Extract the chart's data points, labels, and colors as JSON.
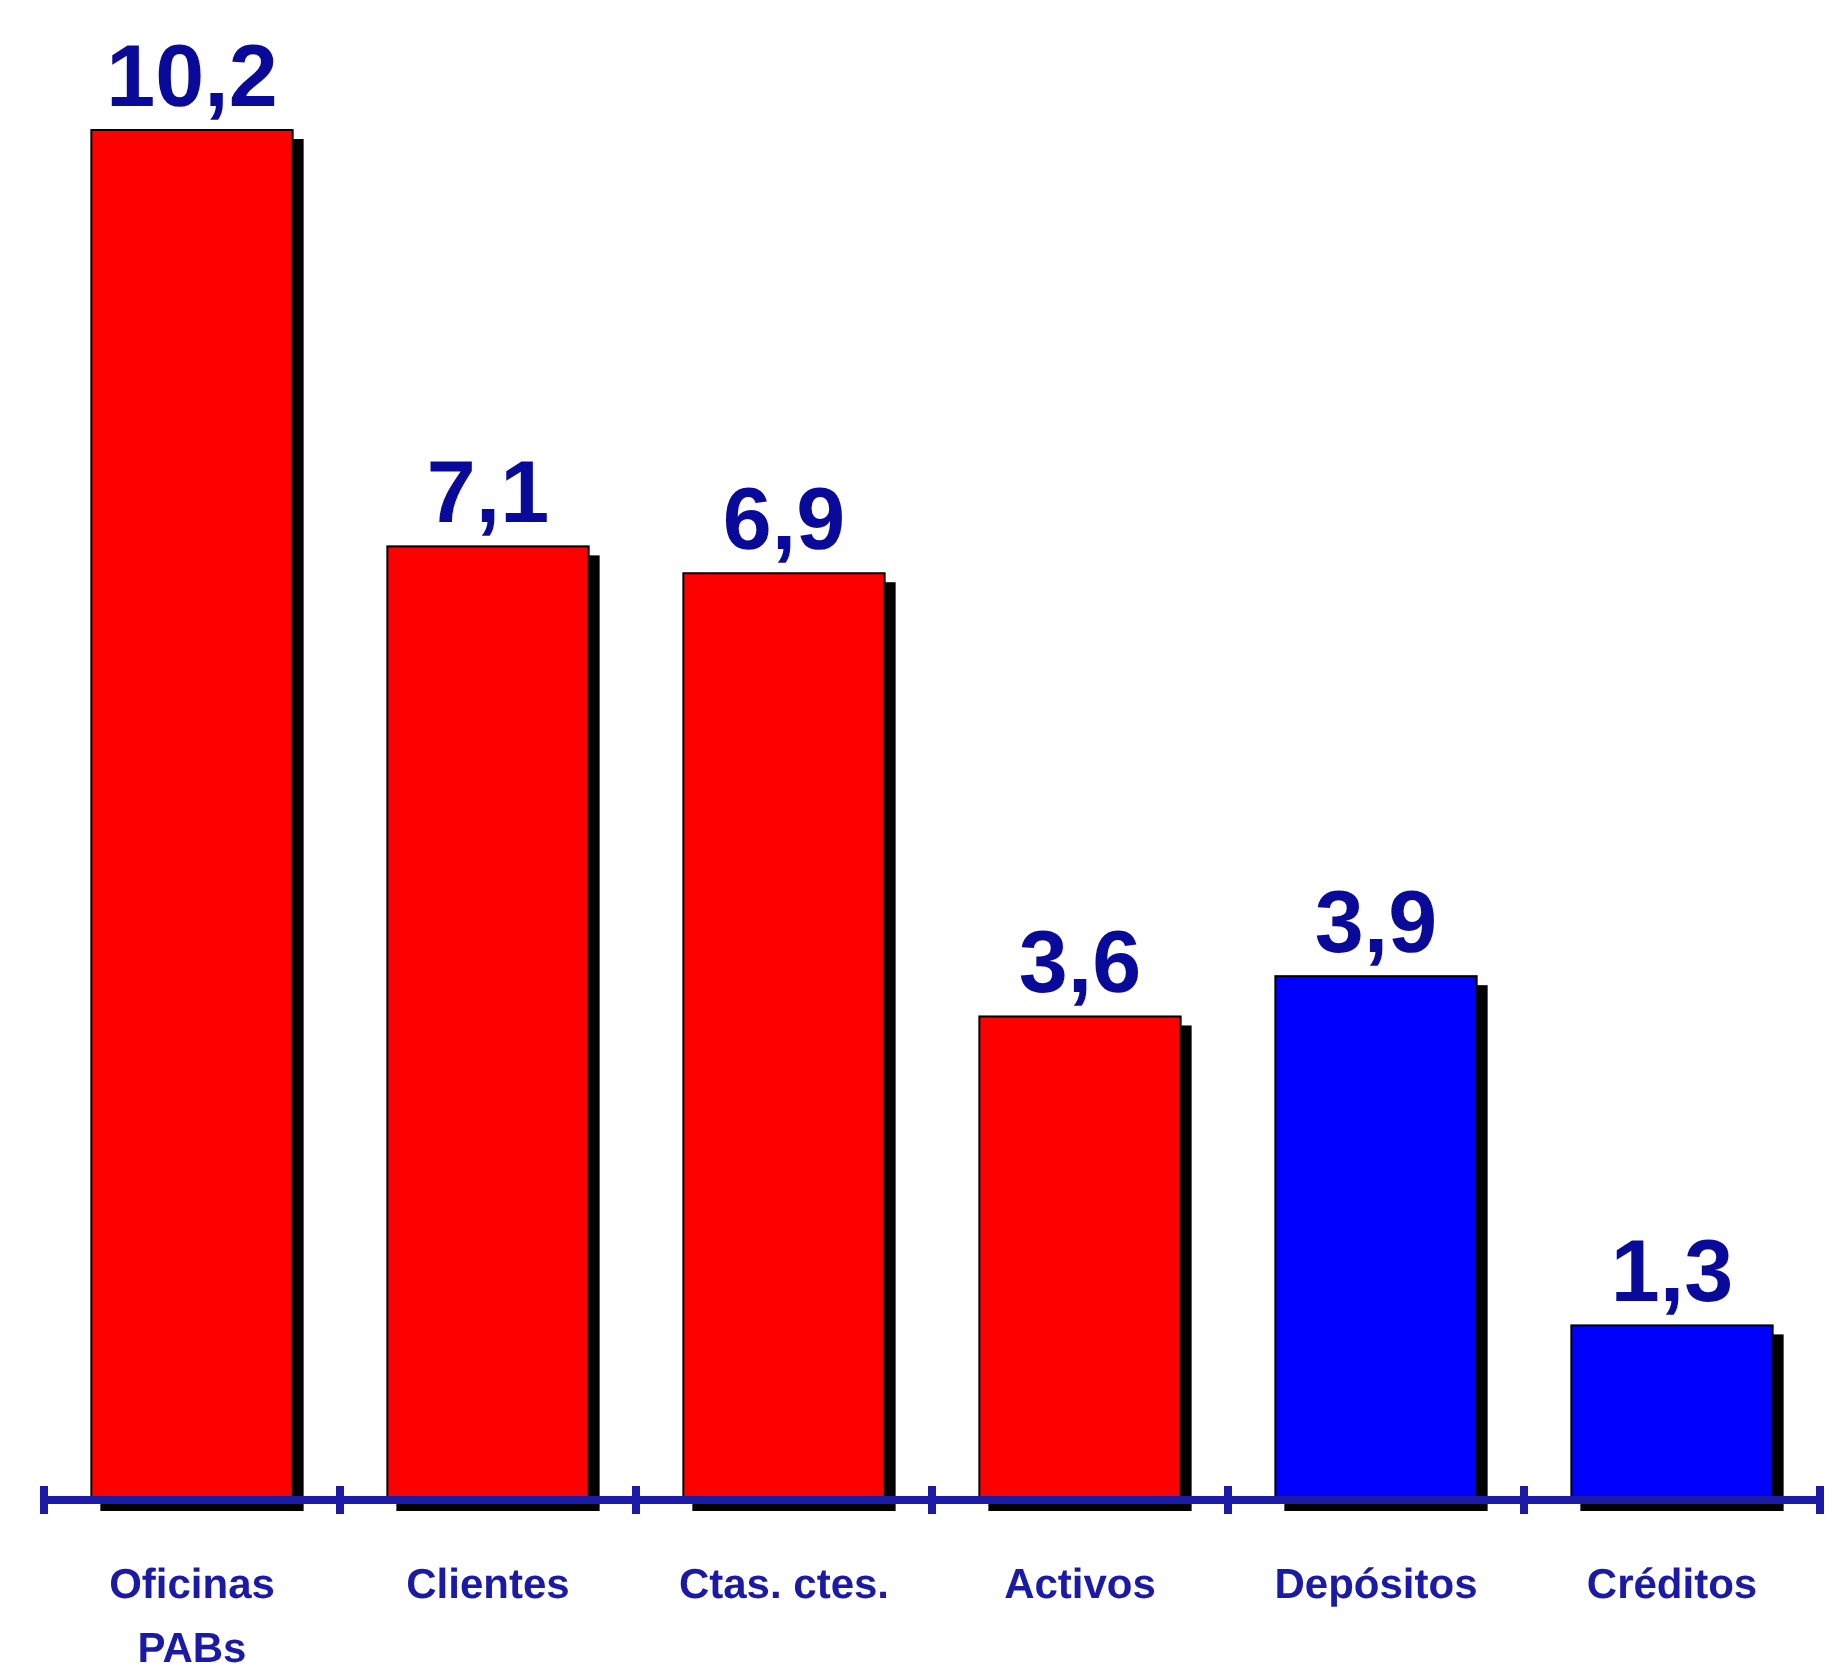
{
  "chart_data": {
    "type": "bar",
    "categories": [
      "Oficinas PABs",
      "Clientes",
      "Ctas. ctes.",
      "Activos",
      "Depósitos",
      "Créditos"
    ],
    "values": [
      10.2,
      7.1,
      6.9,
      3.6,
      3.9,
      1.3
    ],
    "colors": [
      "#ff0000",
      "#ff0000",
      "#ff0000",
      "#ff0000",
      "#0000ff",
      "#0000ff"
    ],
    "value_labels": [
      "10,2",
      "7,1",
      "6,9",
      "3,6",
      "3,9",
      "1,3"
    ]
  }
}
